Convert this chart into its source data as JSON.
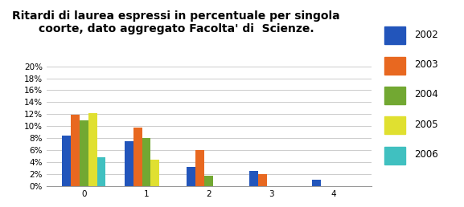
{
  "title": "Ritardi di laurea espressi in percentuale per singola\ncoorte, dato aggregato Facolta' di  Scienze.",
  "categories": [
    0,
    1,
    2,
    3,
    4
  ],
  "series": {
    "2002": [
      0.085,
      0.075,
      0.033,
      0.025,
      0.011
    ],
    "2003": [
      0.119,
      0.098,
      0.06,
      0.02,
      0.0
    ],
    "2004": [
      0.11,
      0.08,
      0.018,
      0.0,
      0.0
    ],
    "2005": [
      0.122,
      0.044,
      0.0,
      0.0,
      0.0
    ],
    "2006": [
      0.049,
      0.0,
      0.0,
      0.0,
      0.0
    ]
  },
  "colors": {
    "2002": "#2255BB",
    "2003": "#E86820",
    "2004": "#72A832",
    "2005": "#E0E030",
    "2006": "#40C0C0"
  },
  "ylim": [
    0,
    0.2
  ],
  "ytick_step": 0.02,
  "bar_width": 0.14,
  "background_color": "#FFFFFF",
  "grid_color": "#CCCCCC",
  "title_fontsize": 10,
  "legend_fontsize": 8.5,
  "tick_fontsize": 7.5
}
